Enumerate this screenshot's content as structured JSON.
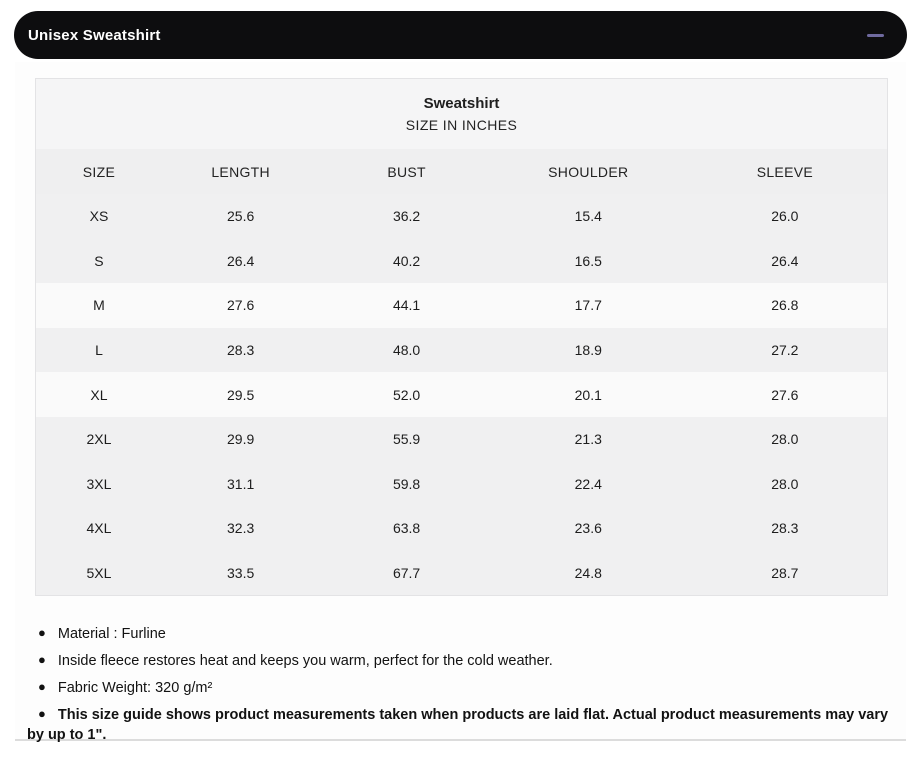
{
  "accordion": {
    "title": "Unisex Sweatshirt",
    "collapse_icon_color": "#6f6a9f"
  },
  "table": {
    "title": "Sweatshirt",
    "subtitle": "SIZE IN INCHES",
    "columns": [
      "SIZE",
      "LENGTH",
      "BUST",
      "SHOULDER",
      "SLEEVE"
    ],
    "rows": [
      [
        "XS",
        "25.6",
        "36.2",
        "15.4",
        "26.0"
      ],
      [
        "S",
        "26.4",
        "40.2",
        "16.5",
        "26.4"
      ],
      [
        "M",
        "27.6",
        "44.1",
        "17.7",
        "26.8"
      ],
      [
        "L",
        "28.3",
        "48.0",
        "18.9",
        "27.2"
      ],
      [
        "XL",
        "29.5",
        "52.0",
        "20.1",
        "27.6"
      ],
      [
        "2XL",
        "29.9",
        "55.9",
        "21.3",
        "28.0"
      ],
      [
        "3XL",
        "31.1",
        "59.8",
        "22.4",
        "28.0"
      ],
      [
        "4XL",
        "32.3",
        "63.8",
        "23.6",
        "28.3"
      ],
      [
        "5XL",
        "33.5",
        "67.7",
        "24.8",
        "28.7"
      ]
    ]
  },
  "notes": [
    {
      "text": "Material : Furline",
      "bold": false
    },
    {
      "text": "Inside fleece restores heat and keeps you warm, perfect for the cold weather.",
      "bold": false
    },
    {
      "text": "Fabric Weight: 320 g/m²",
      "bold": false
    },
    {
      "text": "This size guide shows product measurements taken when products are laid flat. Actual product measurements may vary by up to 1\".",
      "bold": true
    }
  ]
}
